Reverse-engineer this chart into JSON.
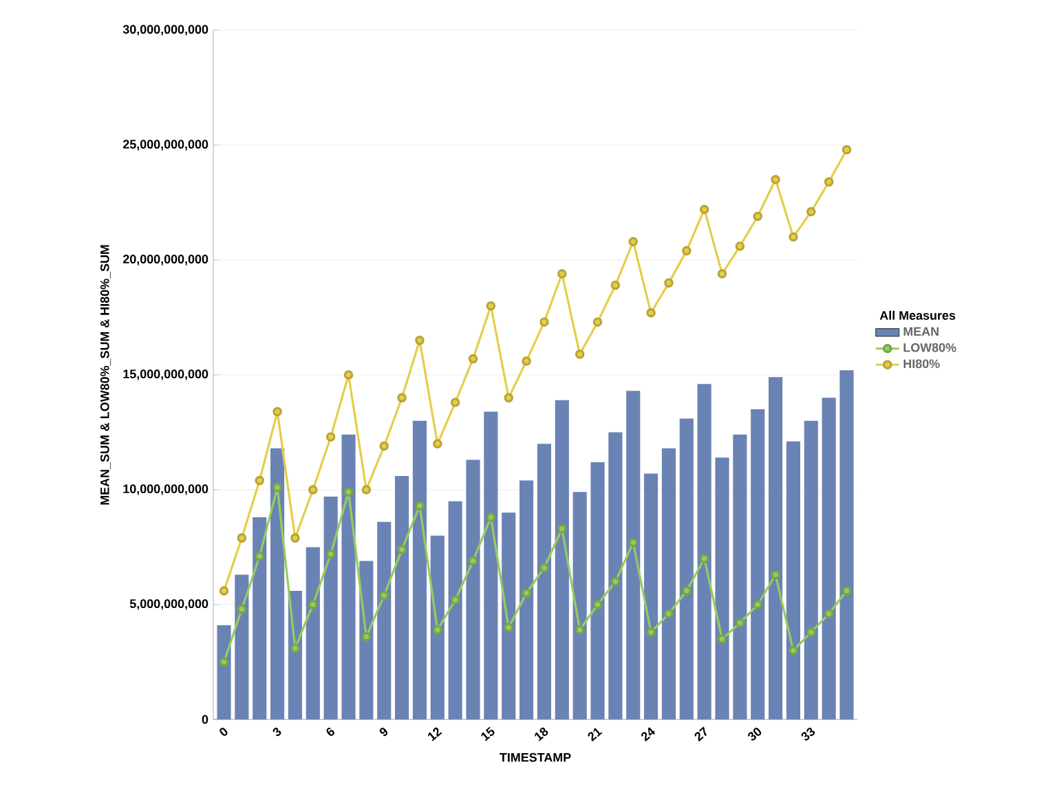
{
  "chart_data": {
    "type": "bar",
    "xlabel": "TIMESTAMP",
    "ylabel": "MEAN_SUM & LOW80%_SUM & HI80%_SUM",
    "legend_title": "All Measures",
    "legend": "right",
    "grid": "y",
    "x": [
      0,
      1,
      2,
      3,
      4,
      5,
      6,
      7,
      8,
      9,
      10,
      11,
      12,
      13,
      14,
      15,
      16,
      17,
      18,
      19,
      20,
      21,
      22,
      23,
      24,
      25,
      26,
      27,
      28,
      29,
      30,
      31,
      32,
      33,
      34,
      35
    ],
    "xlim": [
      -0.6,
      35.6
    ],
    "xticks": [
      0,
      3,
      6,
      9,
      12,
      15,
      18,
      21,
      24,
      27,
      30,
      33
    ],
    "ylim": [
      0,
      30000000000
    ],
    "yticks": [
      {
        "value": 0,
        "label": "0"
      },
      {
        "value": 5000000000,
        "label": "5,000,000,000"
      },
      {
        "value": 10000000000,
        "label": "10,000,000,000"
      },
      {
        "value": 15000000000,
        "label": "15,000,000,000"
      },
      {
        "value": 20000000000,
        "label": "20,000,000,000"
      },
      {
        "value": 25000000000,
        "label": "25,000,000,000"
      },
      {
        "value": 30000000000,
        "label": "30,000,000,000"
      }
    ],
    "series": [
      {
        "name": "MEAN",
        "color": "#6a83b5",
        "values": [
          4100000000,
          6300000000,
          8800000000,
          11800000000,
          5600000000,
          7500000000,
          9700000000,
          12400000000,
          6900000000,
          8600000000,
          10600000000,
          13000000000,
          8000000000,
          9500000000,
          11300000000,
          13400000000,
          9000000000,
          10400000000,
          12000000000,
          13900000000,
          9900000000,
          11200000000,
          12500000000,
          14300000000,
          10700000000,
          11800000000,
          13100000000,
          14600000000,
          11400000000,
          12400000000,
          13500000000,
          14900000000,
          12100000000,
          13000000000,
          14000000000,
          15200000000
        ]
      },
      {
        "name": "LOW80%",
        "type": "line",
        "marker": "circle",
        "color": "#96cc5e",
        "values": [
          2500000000,
          4800000000,
          7100000000,
          10100000000,
          3100000000,
          5000000000,
          7200000000,
          9900000000,
          3600000000,
          5400000000,
          7400000000,
          9300000000,
          3900000000,
          5200000000,
          6900000000,
          8800000000,
          4000000000,
          5500000000,
          6600000000,
          8300000000,
          3900000000,
          5000000000,
          6000000000,
          7700000000,
          3800000000,
          4600000000,
          5600000000,
          7000000000,
          3500000000,
          4200000000,
          5000000000,
          6300000000,
          3000000000,
          3800000000,
          4600000000,
          5600000000
        ]
      },
      {
        "name": "HI80%",
        "type": "line",
        "marker": "circle",
        "color": "#e6cd48",
        "values": [
          5600000000,
          7900000000,
          10400000000,
          13400000000,
          7900000000,
          10000000000,
          12300000000,
          15000000000,
          10000000000,
          11900000000,
          14000000000,
          16500000000,
          12000000000,
          13800000000,
          15700000000,
          18000000000,
          14000000000,
          15600000000,
          17300000000,
          19400000000,
          15900000000,
          17300000000,
          18900000000,
          20800000000,
          17700000000,
          19000000000,
          20400000000,
          22200000000,
          19400000000,
          20600000000,
          21900000000,
          23500000000,
          21000000000,
          22100000000,
          23400000000,
          24800000000
        ]
      }
    ]
  }
}
